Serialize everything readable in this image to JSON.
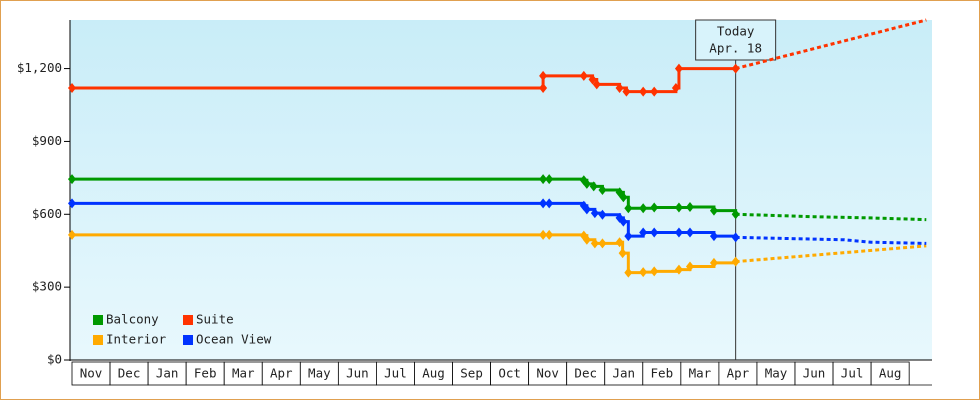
{
  "chart_data": {
    "type": "step-line",
    "xlim": [
      0,
      22.6
    ],
    "xticks": [
      {
        "value": 0.5,
        "label": "Nov"
      },
      {
        "value": 1.5,
        "label": "Dec"
      },
      {
        "value": 2.5,
        "label": "Jan"
      },
      {
        "value": 3.5,
        "label": "Feb"
      },
      {
        "value": 4.5,
        "label": "Mar"
      },
      {
        "value": 5.5,
        "label": "Apr"
      },
      {
        "value": 6.5,
        "label": "May"
      },
      {
        "value": 7.5,
        "label": "Jun"
      },
      {
        "value": 8.5,
        "label": "Jul"
      },
      {
        "value": 9.5,
        "label": "Aug"
      },
      {
        "value": 10.5,
        "label": "Sep"
      },
      {
        "value": 11.5,
        "label": "Oct"
      },
      {
        "value": 12.5,
        "label": "Nov"
      },
      {
        "value": 13.5,
        "label": "Dec"
      },
      {
        "value": 14.5,
        "label": "Jan"
      },
      {
        "value": 15.5,
        "label": "Feb"
      },
      {
        "value": 16.5,
        "label": "Mar"
      },
      {
        "value": 17.5,
        "label": "Apr"
      },
      {
        "value": 18.5,
        "label": "May"
      },
      {
        "value": 19.5,
        "label": "Jun"
      },
      {
        "value": 20.5,
        "label": "Jul"
      },
      {
        "value": 21.5,
        "label": "Aug"
      }
    ],
    "ylim": [
      0,
      1400
    ],
    "yticks": [
      {
        "value": 0,
        "label": "$0"
      },
      {
        "value": 300,
        "label": "$300"
      },
      {
        "value": 600,
        "label": "$600"
      },
      {
        "value": 900,
        "label": "$900"
      },
      {
        "value": 1200,
        "label": "$1,200"
      }
    ],
    "today": {
      "x": 17.44,
      "label": [
        "Today",
        "Apr. 18"
      ]
    },
    "series": [
      {
        "name": "Balcony",
        "color": "#009900",
        "x": [
          0,
          12.38,
          12.54,
          13.45,
          13.53,
          13.71,
          13.94,
          14.39,
          14.49,
          14.62,
          15.01,
          15.3,
          15.95,
          16.24,
          16.87,
          17.44
        ],
        "values": [
          745,
          745,
          745,
          740,
          725,
          715,
          700,
          690,
          670,
          625,
          625,
          628,
          628,
          630,
          615,
          600
        ],
        "projection_x": [
          17.44,
          19.5,
          21.0,
          22.45
        ],
        "projection_values": [
          600,
          590,
          585,
          578
        ]
      },
      {
        "name": "Suite",
        "color": "#ff3300",
        "x": [
          0,
          12.38,
          12.38,
          13.45,
          13.68,
          13.79,
          14.39,
          14.57,
          15.01,
          15.3,
          15.87,
          15.95,
          17.44
        ],
        "values": [
          1120,
          1120,
          1170,
          1170,
          1155,
          1135,
          1120,
          1105,
          1105,
          1105,
          1120,
          1200,
          1200
        ],
        "projection_x": [
          17.44,
          22.45
        ],
        "projection_values": [
          1200,
          1400
        ]
      },
      {
        "name": "Interior",
        "color": "#ffaa00",
        "x": [
          0,
          12.38,
          12.54,
          13.45,
          13.53,
          13.74,
          13.94,
          14.39,
          14.47,
          14.62,
          15.01,
          15.3,
          15.95,
          16.24,
          16.87,
          17.44
        ],
        "values": [
          515,
          515,
          515,
          512,
          495,
          480,
          480,
          485,
          440,
          360,
          362,
          365,
          372,
          385,
          400,
          405
        ],
        "projection_x": [
          17.44,
          22.45
        ],
        "projection_values": [
          405,
          470
        ]
      },
      {
        "name": "Ocean View",
        "color": "#0033ff",
        "x": [
          0,
          12.38,
          12.54,
          13.45,
          13.53,
          13.74,
          13.94,
          14.39,
          14.49,
          14.62,
          15.01,
          15.3,
          15.95,
          16.24,
          16.87,
          17.44
        ],
        "values": [
          645,
          645,
          645,
          635,
          620,
          605,
          598,
          585,
          570,
          510,
          525,
          525,
          525,
          525,
          510,
          505
        ],
        "projection_x": [
          17.44,
          20.3,
          21.0,
          22.45
        ],
        "projection_values": [
          505,
          495,
          485,
          480
        ]
      }
    ]
  }
}
